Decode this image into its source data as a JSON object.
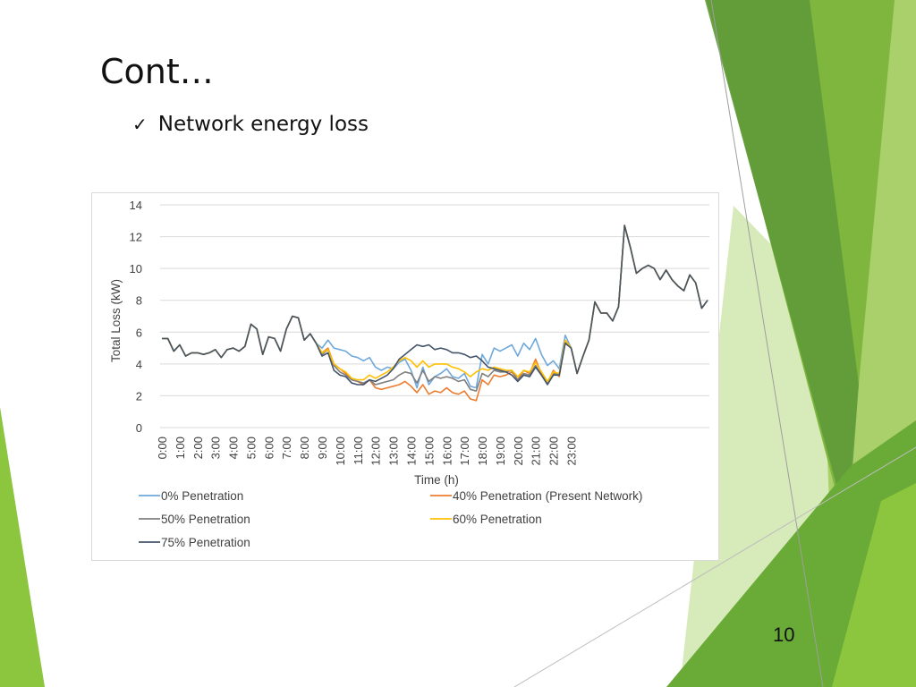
{
  "slide": {
    "title": "Cont…",
    "bullet": "Network energy loss",
    "page_number": "10"
  },
  "theme_colors": {
    "green_dark": "#5f9a3a",
    "green_mid": "#7fb73e",
    "green_light": "#a9d06b",
    "green_pale": "#d7eab9"
  },
  "chart_data": {
    "type": "line",
    "title": "",
    "xlabel": "Time (h)",
    "ylabel": "Total Loss (kW)",
    "ylim": [
      0,
      14
    ],
    "yticks": [
      "0",
      "2",
      "4",
      "6",
      "8",
      "10",
      "12",
      "14"
    ],
    "xticks": [
      "0:00",
      "1:00",
      "2:00",
      "3:00",
      "4:00",
      "5:00",
      "6:00",
      "7:00",
      "8:00",
      "9:00",
      "10:00",
      "11:00",
      "12:00",
      "13:00",
      "14:00",
      "15:00",
      "16:00",
      "17:00",
      "18:00",
      "19:00",
      "20:00",
      "21:00",
      "22:00",
      "23:00"
    ],
    "points_per_hour": 3,
    "grid": true,
    "legend_position": "bottom",
    "series": [
      {
        "name": "0% Penetration",
        "color": "#6fa8dc",
        "values": [
          5.6,
          5.6,
          4.8,
          5.2,
          4.5,
          4.7,
          4.7,
          4.6,
          4.7,
          4.9,
          4.4,
          4.9,
          5.0,
          4.8,
          5.1,
          6.5,
          6.2,
          4.6,
          5.7,
          5.6,
          4.8,
          6.2,
          7.0,
          6.9,
          5.5,
          5.9,
          5.3,
          5.0,
          5.5,
          5.0,
          4.9,
          4.8,
          4.5,
          4.4,
          4.2,
          4.4,
          3.8,
          3.6,
          3.8,
          3.7,
          4.1,
          4.3,
          3.6,
          2.5,
          3.8,
          2.7,
          3.2,
          3.4,
          3.7,
          3.2,
          3.1,
          3.4,
          2.6,
          2.5,
          4.6,
          4.0,
          5.0,
          4.8,
          5.0,
          5.2,
          4.5,
          5.3,
          4.9,
          5.6,
          4.6,
          3.9,
          4.2,
          3.7,
          5.8,
          5.0,
          3.4,
          4.5,
          5.5,
          7.9,
          7.2,
          7.2,
          6.7,
          7.6,
          12.7,
          11.3,
          9.7,
          10.0,
          10.2,
          10.0,
          9.3,
          9.9,
          9.3,
          8.9,
          8.6,
          9.6,
          9.1,
          7.5,
          8.0
        ]
      },
      {
        "name": "40% Penetration (Present Network)",
        "color": "#ed7d31",
        "values": [
          5.6,
          5.6,
          4.8,
          5.2,
          4.5,
          4.7,
          4.7,
          4.6,
          4.7,
          4.9,
          4.4,
          4.9,
          5.0,
          4.8,
          5.1,
          6.5,
          6.2,
          4.6,
          5.7,
          5.6,
          4.8,
          6.2,
          7.0,
          6.9,
          5.5,
          5.9,
          5.3,
          4.7,
          5.0,
          4.0,
          3.7,
          3.4,
          3.0,
          2.9,
          2.7,
          3.0,
          2.5,
          2.4,
          2.5,
          2.6,
          2.7,
          2.9,
          2.6,
          2.2,
          2.7,
          2.1,
          2.3,
          2.2,
          2.5,
          2.2,
          2.1,
          2.3,
          1.8,
          1.7,
          3.0,
          2.7,
          3.3,
          3.2,
          3.3,
          3.5,
          3.0,
          3.6,
          3.4,
          4.3,
          3.4,
          2.8,
          3.6,
          3.2,
          5.5,
          5.0,
          3.4,
          4.5,
          5.5,
          7.9,
          7.2,
          7.2,
          6.7,
          7.6,
          12.7,
          11.3,
          9.7,
          10.0,
          10.2,
          10.0,
          9.3,
          9.9,
          9.3,
          8.9,
          8.6,
          9.6,
          9.1,
          7.5,
          8.0
        ]
      },
      {
        "name": "50% Penetration",
        "color": "#7f7f7f",
        "values": [
          5.6,
          5.6,
          4.8,
          5.2,
          4.5,
          4.7,
          4.7,
          4.6,
          4.7,
          4.9,
          4.4,
          4.9,
          5.0,
          4.8,
          5.1,
          6.5,
          6.2,
          4.6,
          5.7,
          5.6,
          4.8,
          6.2,
          7.0,
          6.9,
          5.5,
          5.9,
          5.3,
          4.6,
          4.9,
          3.9,
          3.5,
          3.3,
          3.0,
          2.9,
          2.8,
          3.0,
          2.7,
          2.8,
          2.9,
          3.0,
          3.3,
          3.5,
          3.4,
          2.8,
          3.6,
          2.9,
          3.2,
          3.1,
          3.2,
          3.1,
          2.9,
          3.0,
          2.4,
          2.3,
          3.4,
          3.2,
          3.6,
          3.5,
          3.5,
          3.6,
          3.0,
          3.4,
          3.3,
          3.9,
          3.3,
          2.8,
          3.4,
          3.3,
          5.4,
          5.0,
          3.4,
          4.5,
          5.5,
          7.9,
          7.2,
          7.2,
          6.7,
          7.6,
          12.7,
          11.3,
          9.7,
          10.0,
          10.2,
          10.0,
          9.3,
          9.9,
          9.3,
          8.9,
          8.6,
          9.6,
          9.1,
          7.5,
          8.0
        ]
      },
      {
        "name": "60% Penetration",
        "color": "#ffc000",
        "values": [
          5.6,
          5.6,
          4.8,
          5.2,
          4.5,
          4.7,
          4.7,
          4.6,
          4.7,
          4.9,
          4.4,
          4.9,
          5.0,
          4.8,
          5.1,
          6.5,
          6.2,
          4.6,
          5.7,
          5.6,
          4.8,
          6.2,
          7.0,
          6.9,
          5.5,
          5.9,
          5.3,
          4.7,
          4.9,
          4.0,
          3.7,
          3.5,
          3.1,
          3.0,
          3.0,
          3.3,
          3.1,
          3.3,
          3.5,
          3.8,
          4.2,
          4.4,
          4.2,
          3.8,
          4.2,
          3.8,
          4.0,
          4.0,
          4.0,
          3.8,
          3.7,
          3.5,
          3.2,
          3.5,
          3.7,
          3.6,
          3.8,
          3.7,
          3.6,
          3.6,
          3.2,
          3.6,
          3.5,
          4.1,
          3.5,
          2.9,
          3.5,
          3.4,
          5.5,
          5.0,
          3.4,
          4.5,
          5.5,
          7.9,
          7.2,
          7.2,
          6.7,
          7.6,
          12.7,
          11.3,
          9.7,
          10.0,
          10.2,
          10.0,
          9.3,
          9.9,
          9.3,
          8.9,
          8.6,
          9.6,
          9.1,
          7.5,
          8.0
        ]
      },
      {
        "name": "75% Penetration",
        "color": "#44546a",
        "values": [
          5.6,
          5.6,
          4.8,
          5.2,
          4.5,
          4.7,
          4.7,
          4.6,
          4.7,
          4.9,
          4.4,
          4.9,
          5.0,
          4.8,
          5.1,
          6.5,
          6.2,
          4.6,
          5.7,
          5.6,
          4.8,
          6.2,
          7.0,
          6.9,
          5.5,
          5.9,
          5.3,
          4.5,
          4.7,
          3.6,
          3.3,
          3.2,
          2.8,
          2.7,
          2.7,
          3.0,
          2.9,
          3.1,
          3.3,
          3.7,
          4.3,
          4.6,
          4.9,
          5.2,
          5.1,
          5.2,
          4.9,
          5.0,
          4.9,
          4.7,
          4.7,
          4.6,
          4.4,
          4.5,
          4.2,
          3.8,
          3.7,
          3.6,
          3.5,
          3.3,
          2.9,
          3.3,
          3.2,
          3.8,
          3.3,
          2.7,
          3.3,
          3.3,
          5.3,
          5.0,
          3.4,
          4.5,
          5.5,
          7.9,
          7.2,
          7.2,
          6.7,
          7.6,
          12.7,
          11.3,
          9.7,
          10.0,
          10.2,
          10.0,
          9.3,
          9.9,
          9.3,
          8.9,
          8.6,
          9.6,
          9.1,
          7.5,
          8.0
        ]
      }
    ]
  }
}
